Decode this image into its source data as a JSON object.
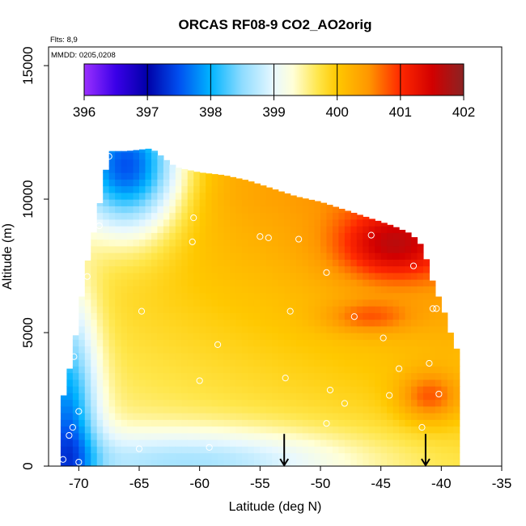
{
  "chart_data": {
    "type": "heatmap",
    "title": "ORCAS RF08-9 CO2_AO2orig",
    "flights_label": "Flts: 8,9",
    "dates_label": "MMDD: 0205,0208",
    "xlabel": "Latitude (deg N)",
    "ylabel": "Altitude (m)",
    "xlim": [
      -72.5,
      -35
    ],
    "ylim": [
      0,
      15700
    ],
    "x_ticks": [
      -70,
      -65,
      -60,
      -55,
      -50,
      -45,
      -40,
      -35
    ],
    "x_tick_labels": [
      "-70",
      "-65",
      "-60",
      "-55",
      "-50",
      "-45",
      "-40",
      "-35"
    ],
    "y_ticks": [
      0,
      5000,
      10000,
      15000
    ],
    "y_tick_labels": [
      "0",
      "5000",
      "10000",
      "15000"
    ],
    "colorbar": {
      "min": 396,
      "max": 402,
      "ticks": [
        396,
        397,
        398,
        399,
        400,
        401,
        402
      ],
      "tick_labels": [
        "396",
        "397",
        "398",
        "399",
        "400",
        "401",
        "402"
      ],
      "stops": [
        {
          "value": 396.0,
          "color": "#9b30ff"
        },
        {
          "value": 396.5,
          "color": "#3a00e8"
        },
        {
          "value": 397.0,
          "color": "#0000a8"
        },
        {
          "value": 397.5,
          "color": "#0050f0"
        },
        {
          "value": 398.0,
          "color": "#00b4ff"
        },
        {
          "value": 398.5,
          "color": "#8fdcff"
        },
        {
          "value": 399.0,
          "color": "#e8f8ff"
        },
        {
          "value": 399.3,
          "color": "#ffffd8"
        },
        {
          "value": 399.7,
          "color": "#ffe64a"
        },
        {
          "value": 400.0,
          "color": "#ffc800"
        },
        {
          "value": 400.5,
          "color": "#ff9600"
        },
        {
          "value": 401.0,
          "color": "#ff2800"
        },
        {
          "value": 401.5,
          "color": "#d20000"
        },
        {
          "value": 402.0,
          "color": "#8b2323"
        }
      ]
    },
    "coverage": [
      {
        "lat": -71.5,
        "alt_max": 2300
      },
      {
        "lat": -71.0,
        "alt_max": 3000
      },
      {
        "lat": -70.5,
        "alt_max": 4300
      },
      {
        "lat": -70.0,
        "alt_max": 5500
      },
      {
        "lat": -69.5,
        "alt_max": 7200
      },
      {
        "lat": -69.0,
        "alt_max": 8200
      },
      {
        "lat": -68.5,
        "alt_max": 9300
      },
      {
        "lat": -68.0,
        "alt_max": 10400
      },
      {
        "lat": -67.5,
        "alt_max": 11800
      },
      {
        "lat": -66.0,
        "alt_max": 11800
      },
      {
        "lat": -64.0,
        "alt_max": 11900
      },
      {
        "lat": -62.0,
        "alt_max": 11200
      },
      {
        "lat": -60.0,
        "alt_max": 11000
      },
      {
        "lat": -58.0,
        "alt_max": 10900
      },
      {
        "lat": -56.0,
        "alt_max": 10700
      },
      {
        "lat": -54.0,
        "alt_max": 10400
      },
      {
        "lat": -52.0,
        "alt_max": 10100
      },
      {
        "lat": -50.0,
        "alt_max": 9900
      },
      {
        "lat": -48.0,
        "alt_max": 9600
      },
      {
        "lat": -46.0,
        "alt_max": 9300
      },
      {
        "lat": -44.0,
        "alt_max": 9000
      },
      {
        "lat": -42.5,
        "alt_max": 8700
      },
      {
        "lat": -41.5,
        "alt_max": 8200
      },
      {
        "lat": -41.0,
        "alt_max": 7300
      },
      {
        "lat": -40.5,
        "alt_max": 6600
      },
      {
        "lat": -40.0,
        "alt_max": 6100
      },
      {
        "lat": -39.5,
        "alt_max": 5400
      },
      {
        "lat": -39.0,
        "alt_max": 4600
      },
      {
        "lat": -38.5,
        "alt_max": 4200
      }
    ],
    "surface_extent": [
      {
        "lat": -71.5,
        "alt_min": 0
      },
      {
        "lat": -39.0,
        "alt_min": 0
      },
      {
        "lat": -38.5,
        "alt_min": 500
      }
    ],
    "field_features": [
      {
        "name": "upper-polar-low",
        "lat": -66.0,
        "alt": 11300,
        "lat_radius": 4.5,
        "alt_radius": 2500,
        "delta": -2.6
      },
      {
        "name": "polar-column-low",
        "lat": -71.0,
        "alt": 1500,
        "lat_radius": 2.5,
        "alt_radius": 5000,
        "delta": -1.8
      },
      {
        "name": "surface-low",
        "lat": -60.0,
        "alt": 200,
        "lat_radius": 13.0,
        "alt_radius": 1200,
        "delta": -0.9
      },
      {
        "name": "upper-max",
        "lat": -44.0,
        "alt": 8300,
        "lat_radius": 4.5,
        "alt_radius": 1300,
        "delta": 1.2
      },
      {
        "name": "mid-max",
        "lat": -46.0,
        "alt": 5600,
        "lat_radius": 3.5,
        "alt_radius": 600,
        "delta": 0.6
      },
      {
        "name": "lower-max",
        "lat": -41.0,
        "alt": 2600,
        "lat_radius": 2.5,
        "alt_radius": 900,
        "delta": 0.8
      }
    ],
    "obs_points": [
      {
        "lat": -67.5,
        "alt": 11600
      },
      {
        "lat": -68.3,
        "alt": 9000
      },
      {
        "lat": -69.3,
        "alt": 7100
      },
      {
        "lat": -60.5,
        "alt": 9300
      },
      {
        "lat": -60.6,
        "alt": 8400
      },
      {
        "lat": -55.0,
        "alt": 8600
      },
      {
        "lat": -54.3,
        "alt": 8550
      },
      {
        "lat": -51.8,
        "alt": 8500
      },
      {
        "lat": -45.8,
        "alt": 8650
      },
      {
        "lat": -41.2,
        "alt": 8500
      },
      {
        "lat": -42.3,
        "alt": 7500
      },
      {
        "lat": -49.5,
        "alt": 7250
      },
      {
        "lat": -64.8,
        "alt": 5800
      },
      {
        "lat": -52.5,
        "alt": 5800
      },
      {
        "lat": -47.2,
        "alt": 5600
      },
      {
        "lat": -40.7,
        "alt": 5900
      },
      {
        "lat": -40.4,
        "alt": 5900
      },
      {
        "lat": -44.8,
        "alt": 4800
      },
      {
        "lat": -58.5,
        "alt": 4550
      },
      {
        "lat": -70.4,
        "alt": 4100
      },
      {
        "lat": -60.0,
        "alt": 3200
      },
      {
        "lat": -52.9,
        "alt": 3300
      },
      {
        "lat": -43.5,
        "alt": 3650
      },
      {
        "lat": -41.0,
        "alt": 3850
      },
      {
        "lat": -49.2,
        "alt": 2850
      },
      {
        "lat": -44.3,
        "alt": 2650
      },
      {
        "lat": -40.2,
        "alt": 2700
      },
      {
        "lat": -48.0,
        "alt": 2350
      },
      {
        "lat": -70.0,
        "alt": 2050
      },
      {
        "lat": -70.5,
        "alt": 1450
      },
      {
        "lat": -70.8,
        "alt": 1150
      },
      {
        "lat": -41.6,
        "alt": 1450
      },
      {
        "lat": -65.0,
        "alt": 650
      },
      {
        "lat": -59.2,
        "alt": 700
      },
      {
        "lat": -71.3,
        "alt": 250
      },
      {
        "lat": -70.0,
        "alt": 150
      },
      {
        "lat": -49.5,
        "alt": 1600
      }
    ],
    "arrows": [
      {
        "lat": -53.0,
        "alt_top": 600
      },
      {
        "lat": -41.3,
        "alt_top": 600
      }
    ]
  }
}
